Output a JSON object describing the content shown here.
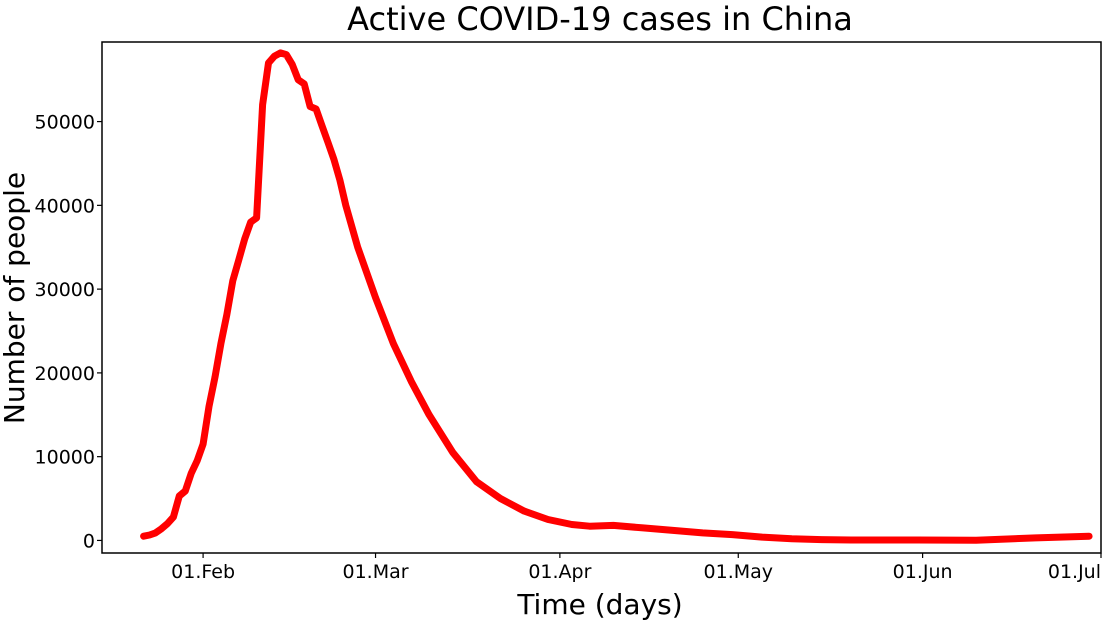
{
  "chart_data": {
    "type": "line",
    "title": "Active COVID-19 cases in China",
    "xlabel": "Time (days)",
    "ylabel": "Number of people",
    "x_ticks": [
      {
        "date": "2020-02-01",
        "label": "01.Feb"
      },
      {
        "date": "2020-03-01",
        "label": "01.Mar"
      },
      {
        "date": "2020-04-01",
        "label": "01.Apr"
      },
      {
        "date": "2020-05-01",
        "label": "01.May"
      },
      {
        "date": "2020-06-01",
        "label": "01.Jun"
      },
      {
        "date": "2020-07-01",
        "label": "01.Jul"
      }
    ],
    "y_ticks": [
      0,
      10000,
      20000,
      30000,
      40000,
      50000
    ],
    "xlim": [
      "2020-01-15",
      "2020-07-01"
    ],
    "ylim": [
      -1500,
      59500
    ],
    "grid": false,
    "color": "#ff0000",
    "series": [
      {
        "x": [
          "2020-01-22",
          "2020-01-23",
          "2020-01-24",
          "2020-01-25",
          "2020-01-26",
          "2020-01-27",
          "2020-01-28",
          "2020-01-29",
          "2020-01-30",
          "2020-01-31",
          "2020-02-01",
          "2020-02-02",
          "2020-02-03",
          "2020-02-04",
          "2020-02-05",
          "2020-02-06",
          "2020-02-07",
          "2020-02-08",
          "2020-02-09",
          "2020-02-10",
          "2020-02-11",
          "2020-02-12",
          "2020-02-13",
          "2020-02-14",
          "2020-02-15",
          "2020-02-16",
          "2020-02-17",
          "2020-02-18",
          "2020-02-19",
          "2020-02-20",
          "2020-02-21",
          "2020-02-22",
          "2020-02-23",
          "2020-02-24",
          "2020-02-25",
          "2020-02-27",
          "2020-03-01",
          "2020-03-04",
          "2020-03-07",
          "2020-03-10",
          "2020-03-14",
          "2020-03-18",
          "2020-03-22",
          "2020-03-26",
          "2020-03-30",
          "2020-04-03",
          "2020-04-06",
          "2020-04-10",
          "2020-04-15",
          "2020-04-20",
          "2020-04-25",
          "2020-04-30",
          "2020-05-05",
          "2020-05-10",
          "2020-05-15",
          "2020-05-20",
          "2020-05-31",
          "2020-06-10",
          "2020-06-20",
          "2020-06-29"
        ],
        "y": [
          500,
          650,
          900,
          1400,
          2000,
          2800,
          5300,
          5900,
          8000,
          9500,
          11500,
          16000,
          19500,
          23500,
          27000,
          31000,
          33500,
          36000,
          38000,
          38500,
          52000,
          57000,
          57800,
          58200,
          58000,
          56800,
          55000,
          54500,
          51800,
          51500,
          49500,
          47500,
          45500,
          43000,
          40000,
          35000,
          29000,
          23500,
          19000,
          15000,
          10500,
          7000,
          5000,
          3500,
          2500,
          1900,
          1700,
          1800,
          1500,
          1200,
          900,
          700,
          400,
          200,
          100,
          50,
          50,
          30,
          300,
          500
        ]
      }
    ]
  }
}
